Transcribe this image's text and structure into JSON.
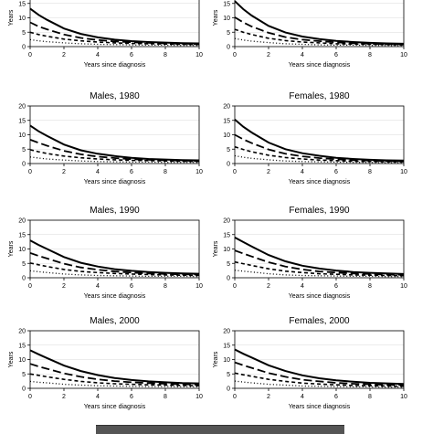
{
  "x_axis_label": "Years since diagnosis",
  "y_axis_label": "Years",
  "chart_data": [
    {
      "type": "line",
      "title": "",
      "xlabel": "Years since diagnosis",
      "ylabel": "Years",
      "xlim": [
        0,
        10
      ],
      "ylim": [
        0,
        20
      ],
      "xticks": [
        0,
        2,
        4,
        6,
        8,
        10
      ],
      "yticks": [
        0,
        5,
        10,
        15
      ],
      "x": [
        0,
        0.5,
        1,
        2,
        3,
        4,
        5,
        6,
        7,
        8,
        9,
        10
      ],
      "series": [
        {
          "style": "solid",
          "values": [
            13.2,
            11.0,
            9.3,
            6.3,
            4.4,
            3.2,
            2.4,
            1.9,
            1.6,
            1.4,
            1.2,
            1.1
          ]
        },
        {
          "style": "long-dash",
          "values": [
            8.4,
            7.0,
            6.0,
            4.2,
            3.0,
            2.3,
            1.8,
            1.5,
            1.3,
            1.1,
            1.0,
            0.9
          ]
        },
        {
          "style": "short-dash",
          "values": [
            5.0,
            4.2,
            3.6,
            2.6,
            2.0,
            1.6,
            1.3,
            1.1,
            1.0,
            0.9,
            0.8,
            0.7
          ]
        },
        {
          "style": "dotted",
          "values": [
            2.4,
            2.0,
            1.7,
            1.3,
            1.0,
            0.8,
            0.7,
            0.6,
            0.5,
            0.5,
            0.4,
            0.4
          ]
        }
      ]
    },
    {
      "type": "line",
      "title": "",
      "xlabel": "Years since diagnosis",
      "ylabel": "Years",
      "xlim": [
        0,
        10
      ],
      "ylim": [
        0,
        20
      ],
      "xticks": [
        0,
        2,
        4,
        6,
        8,
        10
      ],
      "yticks": [
        0,
        5,
        10,
        15
      ],
      "x": [
        0,
        0.5,
        1,
        2,
        3,
        4,
        5,
        6,
        7,
        8,
        9,
        10
      ],
      "series": [
        {
          "style": "solid",
          "values": [
            15.8,
            13.0,
            10.8,
            7.2,
            4.9,
            3.5,
            2.6,
            2.0,
            1.6,
            1.3,
            1.1,
            1.0
          ]
        },
        {
          "style": "long-dash",
          "values": [
            10.2,
            8.4,
            7.0,
            4.8,
            3.3,
            2.4,
            1.9,
            1.5,
            1.2,
            1.0,
            0.9,
            0.8
          ]
        },
        {
          "style": "short-dash",
          "values": [
            6.0,
            5.0,
            4.2,
            2.9,
            2.1,
            1.6,
            1.3,
            1.0,
            0.9,
            0.8,
            0.7,
            0.6
          ]
        },
        {
          "style": "dotted",
          "values": [
            2.8,
            2.3,
            1.9,
            1.4,
            1.0,
            0.8,
            0.6,
            0.5,
            0.5,
            0.4,
            0.4,
            0.3
          ]
        }
      ]
    },
    {
      "type": "line",
      "title": "Males, 1980",
      "xlabel": "Years since diagnosis",
      "ylabel": "",
      "xlim": [
        0,
        10
      ],
      "ylim": [
        0,
        20
      ],
      "xticks": [
        0,
        2,
        4,
        6,
        8,
        10
      ],
      "yticks": [
        0,
        5,
        10,
        15,
        20
      ],
      "x": [
        0,
        0.5,
        1,
        2,
        3,
        4,
        5,
        6,
        7,
        8,
        9,
        10
      ],
      "series": [
        {
          "style": "solid",
          "values": [
            13.2,
            11.2,
            9.6,
            6.6,
            4.6,
            3.4,
            2.6,
            2.0,
            1.6,
            1.4,
            1.2,
            1.1
          ]
        },
        {
          "style": "long-dash",
          "values": [
            8.3,
            7.2,
            6.2,
            4.4,
            3.2,
            2.4,
            1.9,
            1.5,
            1.3,
            1.1,
            1.0,
            0.9
          ]
        },
        {
          "style": "short-dash",
          "values": [
            4.8,
            4.1,
            3.5,
            2.6,
            2.0,
            1.6,
            1.3,
            1.1,
            1.0,
            0.9,
            0.8,
            0.7
          ]
        },
        {
          "style": "dotted",
          "values": [
            2.3,
            1.9,
            1.6,
            1.2,
            0.9,
            0.7,
            0.6,
            0.5,
            0.5,
            0.4,
            0.4,
            0.4
          ]
        }
      ]
    },
    {
      "type": "line",
      "title": "Females, 1980",
      "xlabel": "Years since diagnosis",
      "ylabel": "",
      "xlim": [
        0,
        10
      ],
      "ylim": [
        0,
        20
      ],
      "xticks": [
        0,
        2,
        4,
        6,
        8,
        10
      ],
      "yticks": [
        0,
        5,
        10,
        15,
        20
      ],
      "x": [
        0,
        0.5,
        1,
        2,
        3,
        4,
        5,
        6,
        7,
        8,
        9,
        10
      ],
      "series": [
        {
          "style": "solid",
          "values": [
            15.3,
            12.8,
            10.8,
            7.3,
            5.0,
            3.6,
            2.7,
            2.0,
            1.6,
            1.3,
            1.1,
            1.0
          ]
        },
        {
          "style": "long-dash",
          "values": [
            10.0,
            8.4,
            7.1,
            4.9,
            3.4,
            2.5,
            1.9,
            1.5,
            1.2,
            1.0,
            0.9,
            0.8
          ]
        },
        {
          "style": "short-dash",
          "values": [
            5.8,
            4.9,
            4.1,
            2.9,
            2.1,
            1.6,
            1.2,
            1.0,
            0.8,
            0.7,
            0.6,
            0.6
          ]
        },
        {
          "style": "dotted",
          "values": [
            2.7,
            2.2,
            1.8,
            1.3,
            0.9,
            0.7,
            0.6,
            0.5,
            0.4,
            0.4,
            0.3,
            0.3
          ]
        }
      ]
    },
    {
      "type": "line",
      "title": "Males, 1990",
      "xlabel": "Years since diagnosis",
      "ylabel": "Years",
      "xlim": [
        0,
        10
      ],
      "ylim": [
        0,
        20
      ],
      "xticks": [
        0,
        2,
        4,
        6,
        8,
        10
      ],
      "yticks": [
        0,
        5,
        10,
        15,
        20
      ],
      "x": [
        0,
        0.5,
        1,
        2,
        3,
        4,
        5,
        6,
        7,
        8,
        9,
        10
      ],
      "series": [
        {
          "style": "solid",
          "values": [
            13.0,
            11.4,
            10.0,
            7.2,
            5.2,
            3.9,
            3.0,
            2.4,
            2.0,
            1.7,
            1.5,
            1.4
          ]
        },
        {
          "style": "long-dash",
          "values": [
            8.6,
            7.6,
            6.7,
            4.9,
            3.6,
            2.8,
            2.2,
            1.8,
            1.5,
            1.3,
            1.2,
            1.1
          ]
        },
        {
          "style": "short-dash",
          "values": [
            5.1,
            4.5,
            3.9,
            2.9,
            2.2,
            1.8,
            1.5,
            1.3,
            1.1,
            1.0,
            0.9,
            0.8
          ]
        },
        {
          "style": "dotted",
          "values": [
            2.4,
            2.1,
            1.8,
            1.3,
            1.0,
            0.8,
            0.7,
            0.6,
            0.5,
            0.5,
            0.5,
            0.4
          ]
        }
      ]
    },
    {
      "type": "line",
      "title": "Females, 1990",
      "xlabel": "Years since diagnosis",
      "ylabel": "Years",
      "xlim": [
        0,
        10
      ],
      "ylim": [
        0,
        20
      ],
      "xticks": [
        0,
        2,
        4,
        6,
        8,
        10
      ],
      "yticks": [
        0,
        5,
        10,
        15,
        20
      ],
      "x": [
        0,
        0.5,
        1,
        2,
        3,
        4,
        5,
        6,
        7,
        8,
        9,
        10
      ],
      "series": [
        {
          "style": "solid",
          "values": [
            14.0,
            12.4,
            10.9,
            7.9,
            5.7,
            4.2,
            3.2,
            2.5,
            2.0,
            1.7,
            1.5,
            1.3
          ]
        },
        {
          "style": "long-dash",
          "values": [
            9.5,
            8.4,
            7.4,
            5.4,
            3.9,
            2.9,
            2.2,
            1.8,
            1.5,
            1.3,
            1.1,
            1.0
          ]
        },
        {
          "style": "short-dash",
          "values": [
            5.5,
            4.9,
            4.3,
            3.1,
            2.3,
            1.8,
            1.4,
            1.2,
            1.0,
            0.9,
            0.8,
            0.7
          ]
        },
        {
          "style": "dotted",
          "values": [
            2.6,
            2.3,
            2.0,
            1.4,
            1.0,
            0.8,
            0.7,
            0.6,
            0.5,
            0.5,
            0.4,
            0.4
          ]
        }
      ]
    },
    {
      "type": "line",
      "title": "Males, 2000",
      "xlabel": "Years since diagnosis",
      "ylabel": "Years",
      "xlim": [
        0,
        10
      ],
      "ylim": [
        0,
        20
      ],
      "xticks": [
        0,
        2,
        4,
        6,
        8,
        10
      ],
      "yticks": [
        0,
        5,
        10,
        15,
        20
      ],
      "x": [
        0,
        0.5,
        1,
        2,
        3,
        4,
        5,
        6,
        7,
        8,
        9,
        10
      ],
      "series": [
        {
          "style": "solid",
          "values": [
            13.2,
            11.8,
            10.5,
            7.9,
            6.0,
            4.6,
            3.6,
            2.9,
            2.4,
            2.1,
            1.8,
            1.7
          ]
        },
        {
          "style": "long-dash",
          "values": [
            8.5,
            7.6,
            6.8,
            5.2,
            4.0,
            3.1,
            2.5,
            2.1,
            1.8,
            1.6,
            1.4,
            1.3
          ]
        },
        {
          "style": "short-dash",
          "values": [
            5.0,
            4.5,
            4.0,
            3.1,
            2.4,
            1.9,
            1.6,
            1.4,
            1.2,
            1.1,
            1.0,
            0.9
          ]
        },
        {
          "style": "dotted",
          "values": [
            2.4,
            2.1,
            1.9,
            1.4,
            1.1,
            0.9,
            0.8,
            0.7,
            0.6,
            0.6,
            0.5,
            0.5
          ]
        }
      ]
    },
    {
      "type": "line",
      "title": "Females, 2000",
      "xlabel": "Years since diagnosis",
      "ylabel": "Years",
      "xlim": [
        0,
        10
      ],
      "ylim": [
        0,
        20
      ],
      "xticks": [
        0,
        2,
        4,
        6,
        8,
        10
      ],
      "yticks": [
        0,
        5,
        10,
        15,
        20
      ],
      "x": [
        0,
        0.5,
        1,
        2,
        3,
        4,
        5,
        6,
        7,
        8,
        9,
        10
      ],
      "series": [
        {
          "style": "solid",
          "values": [
            13.5,
            12.0,
            10.7,
            8.0,
            6.0,
            4.5,
            3.5,
            2.8,
            2.3,
            1.9,
            1.7,
            1.5
          ]
        },
        {
          "style": "long-dash",
          "values": [
            9.0,
            8.0,
            7.1,
            5.3,
            4.0,
            3.0,
            2.4,
            1.9,
            1.6,
            1.4,
            1.2,
            1.1
          ]
        },
        {
          "style": "short-dash",
          "values": [
            5.3,
            4.7,
            4.2,
            3.1,
            2.4,
            1.8,
            1.5,
            1.2,
            1.0,
            0.9,
            0.8,
            0.7
          ]
        },
        {
          "style": "dotted",
          "values": [
            2.5,
            2.2,
            1.9,
            1.4,
            1.1,
            0.8,
            0.7,
            0.6,
            0.5,
            0.5,
            0.4,
            0.4
          ]
        }
      ]
    }
  ]
}
